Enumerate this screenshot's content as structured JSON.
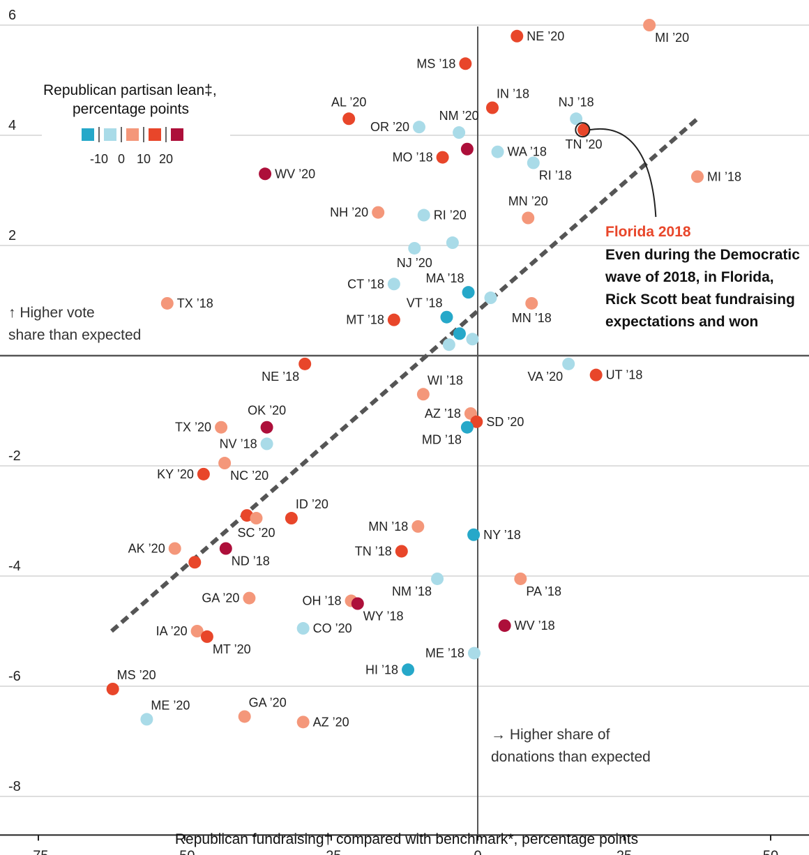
{
  "chart_data": {
    "type": "scatter",
    "xlabel": "Republican fundraising† compared with benchmark*, percentage points",
    "xlim": [
      -80,
      56
    ],
    "ylim": [
      -8.6,
      6.2
    ],
    "xticks": [
      "-75",
      "-50",
      "-25",
      "0",
      "25",
      "50"
    ],
    "yticks": [
      "6",
      "4",
      "2",
      "-2",
      "-4",
      "-6",
      "-8"
    ],
    "grid": true,
    "legend": {
      "title_line1": "Republican partisan lean‡,",
      "title_line2": "percentage points",
      "tick_labels": [
        "-10",
        "0",
        "10",
        "20"
      ],
      "placement": "top-left",
      "swatches": [
        "#26a8c9",
        "#a9dbe8",
        "#f4977a",
        "#e8462a",
        "#ad0f3a"
      ]
    },
    "colors": {
      "c1": "#26a8c9",
      "c2": "#a9dbe8",
      "c3": "#f4977a",
      "c4": "#e8462a",
      "c5": "#ad0f3a"
    },
    "trendline": {
      "x": [
        -62.5,
        37.5
      ],
      "y": [
        -5.0,
        4.3
      ],
      "style": "dashed"
    },
    "notes": {
      "vote_line1": "↑ Higher vote",
      "vote_line2": "share than expected",
      "don_line1": "→ Higher share of",
      "don_line2": "donations than expected"
    },
    "annotation": {
      "title": "Florida 2018",
      "lines": [
        "Even during the Democratic",
        "wave of 2018, in Florida,",
        "Rick Scott beat fundraising",
        "expectations and won"
      ],
      "point": [
        17.9,
        4.1
      ]
    },
    "points": [
      {
        "label": "NE ’20",
        "x": 6.7,
        "y": 5.8,
        "c": "c4",
        "pos": "r"
      },
      {
        "label": "MI ’20",
        "x": 29.3,
        "y": 6.0,
        "c": "c3",
        "pos": "br"
      },
      {
        "label": "MS ’18",
        "x": -2.1,
        "y": 5.3,
        "c": "c4",
        "pos": "l"
      },
      {
        "label": "AL ’20",
        "x": -22.0,
        "y": 4.3,
        "c": "c4",
        "pos": "t"
      },
      {
        "label": "IN ’18",
        "x": 2.5,
        "y": 4.5,
        "c": "c4",
        "pos": "tr"
      },
      {
        "label": "NJ ’18",
        "x": 16.8,
        "y": 4.3,
        "c": "c2",
        "pos": "t"
      },
      {
        "label": "OR ’20",
        "x": -10.0,
        "y": 4.15,
        "c": "c2",
        "pos": "l"
      },
      {
        "label": "NM ’20",
        "x": -3.2,
        "y": 4.05,
        "c": "c2",
        "pos": "t"
      },
      {
        "label": "TN ’20",
        "x": 18.1,
        "y": 4.1,
        "c": "c4",
        "pos": "b"
      },
      {
        "label": "",
        "x": -1.8,
        "y": 3.75,
        "c": "c5",
        "pos": "n"
      },
      {
        "label": "MO ’18",
        "x": -6.0,
        "y": 3.6,
        "c": "c4",
        "pos": "l"
      },
      {
        "label": "WA ’18",
        "x": 3.4,
        "y": 3.7,
        "c": "c2",
        "pos": "r"
      },
      {
        "label": "RI ’18",
        "x": 9.5,
        "y": 3.5,
        "c": "c2",
        "pos": "br"
      },
      {
        "label": "WV ’20",
        "x": -36.3,
        "y": 3.3,
        "c": "c5",
        "pos": "r"
      },
      {
        "label": "MI ’18",
        "x": 37.5,
        "y": 3.25,
        "c": "c3",
        "pos": "r"
      },
      {
        "label": "NH ’20",
        "x": -17.0,
        "y": 2.6,
        "c": "c3",
        "pos": "l"
      },
      {
        "label": "RI ’20",
        "x": -9.2,
        "y": 2.55,
        "c": "c2",
        "pos": "r"
      },
      {
        "label": "MN ’20",
        "x": 8.6,
        "y": 2.5,
        "c": "c3",
        "pos": "t"
      },
      {
        "label": "",
        "x": -4.3,
        "y": 2.05,
        "c": "c2",
        "pos": "n"
      },
      {
        "label": "NJ ’20",
        "x": -10.8,
        "y": 1.95,
        "c": "c2",
        "pos": "b"
      },
      {
        "label": "CT ’18",
        "x": -14.3,
        "y": 1.3,
        "c": "c2",
        "pos": "l"
      },
      {
        "label": "MA ’18",
        "x": -1.6,
        "y": 1.15,
        "c": "c1",
        "pos": "tl"
      },
      {
        "label": "",
        "x": 2.2,
        "y": 1.05,
        "c": "c2",
        "pos": "n"
      },
      {
        "label": "MN ’18",
        "x": 9.2,
        "y": 0.95,
        "c": "c3",
        "pos": "b"
      },
      {
        "label": "TX ’18",
        "x": -53.0,
        "y": 0.95,
        "c": "c3",
        "pos": "r"
      },
      {
        "label": "VT ’18",
        "x": -5.3,
        "y": 0.7,
        "c": "c1",
        "pos": "tl"
      },
      {
        "label": "MT ’18",
        "x": -14.3,
        "y": 0.65,
        "c": "c4",
        "pos": "l"
      },
      {
        "label": "",
        "x": -3.1,
        "y": 0.4,
        "c": "c1",
        "pos": "n"
      },
      {
        "label": "",
        "x": -0.9,
        "y": 0.3,
        "c": "c2",
        "pos": "n"
      },
      {
        "label": "",
        "x": -4.9,
        "y": 0.2,
        "c": "c2",
        "pos": "n"
      },
      {
        "label": "NE ’18",
        "x": -29.5,
        "y": -0.15,
        "c": "c4",
        "pos": "bl"
      },
      {
        "label": "VA ’20",
        "x": 15.5,
        "y": -0.15,
        "c": "c2",
        "pos": "bl"
      },
      {
        "label": "UT ’18",
        "x": 20.2,
        "y": -0.35,
        "c": "c4",
        "pos": "r"
      },
      {
        "label": "WI ’18",
        "x": -9.3,
        "y": -0.7,
        "c": "c3",
        "pos": "tr"
      },
      {
        "label": "AZ ’18",
        "x": -1.2,
        "y": -1.05,
        "c": "c3",
        "pos": "l"
      },
      {
        "label": "SD ’20",
        "x": -0.2,
        "y": -1.2,
        "c": "c4",
        "pos": "r"
      },
      {
        "label": "MD ’18",
        "x": -1.8,
        "y": -1.3,
        "c": "c1",
        "pos": "bl"
      },
      {
        "label": "OK ’20",
        "x": -36.0,
        "y": -1.3,
        "c": "c5",
        "pos": "t"
      },
      {
        "label": "TX ’20",
        "x": -43.8,
        "y": -1.3,
        "c": "c3",
        "pos": "l"
      },
      {
        "label": "NV ’18",
        "x": -36.0,
        "y": -1.6,
        "c": "c2",
        "pos": "l"
      },
      {
        "label": "NC ’20",
        "x": -43.2,
        "y": -1.95,
        "c": "c3",
        "pos": "br"
      },
      {
        "label": "KY ’20",
        "x": -46.8,
        "y": -2.15,
        "c": "c4",
        "pos": "l"
      },
      {
        "label": "ID ’20",
        "x": -31.8,
        "y": -2.95,
        "c": "c4",
        "pos": "tr"
      },
      {
        "label": "",
        "x": -39.4,
        "y": -2.9,
        "c": "c4",
        "pos": "n"
      },
      {
        "label": "SC ’20",
        "x": -37.8,
        "y": -2.95,
        "c": "c3",
        "pos": "b"
      },
      {
        "label": "MN ’18",
        "x": -10.2,
        "y": -3.1,
        "c": "c3",
        "pos": "l"
      },
      {
        "label": "NY ’18",
        "x": -0.7,
        "y": -3.25,
        "c": "c1",
        "pos": "r"
      },
      {
        "label": "TN ’18",
        "x": -13.0,
        "y": -3.55,
        "c": "c4",
        "pos": "l"
      },
      {
        "label": "AK ’20",
        "x": -51.7,
        "y": -3.5,
        "c": "c3",
        "pos": "l"
      },
      {
        "label": "ND ’18",
        "x": -43.0,
        "y": -3.5,
        "c": "c5",
        "pos": "br"
      },
      {
        "label": "",
        "x": -48.3,
        "y": -3.75,
        "c": "c4",
        "pos": "n"
      },
      {
        "label": "NM ’18",
        "x": -6.9,
        "y": -4.05,
        "c": "c2",
        "pos": "bl"
      },
      {
        "label": "PA ’18",
        "x": 7.3,
        "y": -4.05,
        "c": "c3",
        "pos": "br"
      },
      {
        "label": "GA ’20",
        "x": -39.0,
        "y": -4.4,
        "c": "c3",
        "pos": "l"
      },
      {
        "label": "OH ’18",
        "x": -21.6,
        "y": -4.45,
        "c": "c3",
        "pos": "l"
      },
      {
        "label": "WY ’18",
        "x": -20.5,
        "y": -4.5,
        "c": "c5",
        "pos": "br"
      },
      {
        "label": "WV ’18",
        "x": 4.6,
        "y": -4.9,
        "c": "c5",
        "pos": "r"
      },
      {
        "label": "CO ’20",
        "x": -29.8,
        "y": -4.95,
        "c": "c2",
        "pos": "r"
      },
      {
        "label": "IA ’20",
        "x": -47.9,
        "y": -5.0,
        "c": "c3",
        "pos": "l"
      },
      {
        "label": "MT ’20",
        "x": -46.2,
        "y": -5.1,
        "c": "c4",
        "pos": "br"
      },
      {
        "label": "ME ’18",
        "x": -0.6,
        "y": -5.4,
        "c": "c2",
        "pos": "l"
      },
      {
        "label": "HI ’18",
        "x": -11.9,
        "y": -5.7,
        "c": "c1",
        "pos": "l"
      },
      {
        "label": "MS ’20",
        "x": -62.3,
        "y": -6.05,
        "c": "c4",
        "pos": "tr"
      },
      {
        "label": "ME ’20",
        "x": -56.5,
        "y": -6.6,
        "c": "c2",
        "pos": "tr"
      },
      {
        "label": "GA ’20",
        "x": -39.8,
        "y": -6.55,
        "c": "c3",
        "pos": "tr"
      },
      {
        "label": "AZ ’20",
        "x": -29.8,
        "y": -6.65,
        "c": "c3",
        "pos": "r"
      }
    ]
  }
}
